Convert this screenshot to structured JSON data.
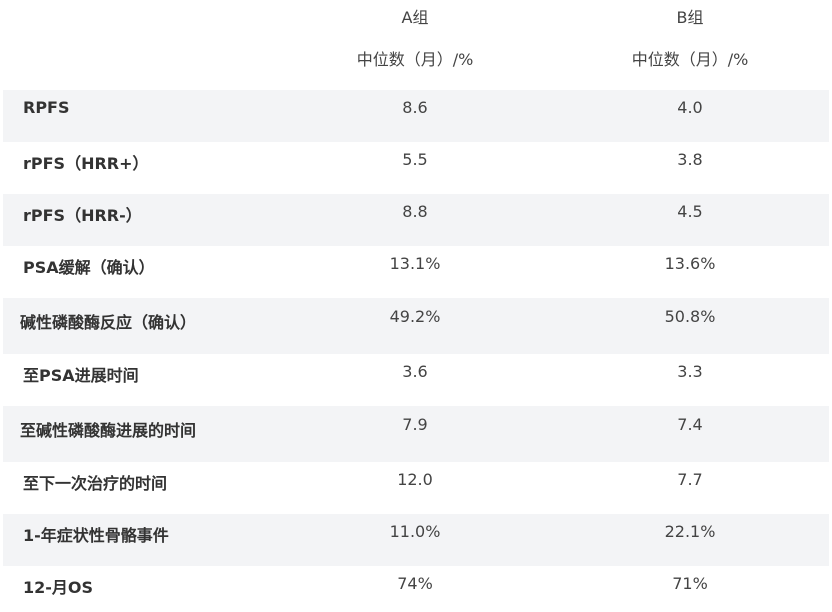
{
  "header": {
    "group_a": "A组",
    "group_b": "B组",
    "unit_a": "中位数（月）/%",
    "unit_b": "中位数（月）/%"
  },
  "rows": [
    {
      "label": "RPFS",
      "a": "8.6",
      "b": "4.0"
    },
    {
      "label": "rPFS（HRR+）",
      "a": "5.5",
      "b": "3.8"
    },
    {
      "label": "rPFS（HRR-）",
      "a": "8.8",
      "b": "4.5"
    },
    {
      "label": "PSA缓解（确认）",
      "a": "13.1%",
      "b": "13.6%"
    },
    {
      "label": "碱性磷酸酶反应（确认）",
      "a": "49.2%",
      "b": "50.8%"
    },
    {
      "label": "至PSA进展时间",
      "a": "3.6",
      "b": "3.3"
    },
    {
      "label": "至碱性磷酸酶进展的时间",
      "a": "7.9",
      "b": "7.4"
    },
    {
      "label": "至下一次治疗的时间",
      "a": "12.0",
      "b": "7.7"
    },
    {
      "label": "1-年症状性骨骼事件",
      "a": "11.0%",
      "b": "22.1%"
    },
    {
      "label": "12-月OS",
      "a": "74%",
      "b": "71%"
    }
  ],
  "colors": {
    "shaded_row": "#f3f4f6",
    "text": "#333333"
  }
}
